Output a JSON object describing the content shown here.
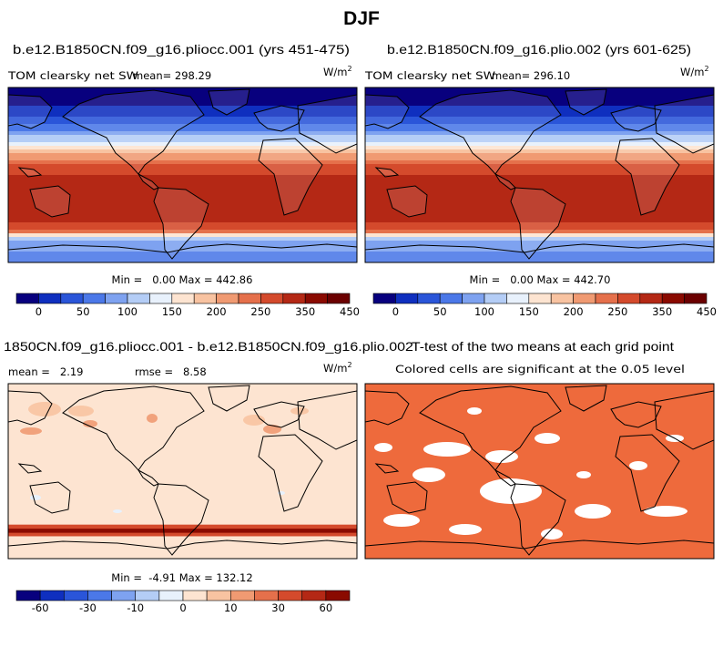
{
  "chart_data": {
    "type": "heatmap",
    "figure_title": "DJF",
    "panels": [
      {
        "id": "panel-1",
        "title": "b.e12.B1850CN.f09_g16.pliocc.001 (yrs 451-475)",
        "field_label": "TOM clearsky net SW",
        "mean_text": "mean= 298.29",
        "unit": "W/m",
        "unit_exp": "2",
        "stats_text": "Min =   0.00 Max = 442.86",
        "field": "absolute",
        "latitude_bands": [
          {
            "lat": 80,
            "value": 10
          },
          {
            "lat": 60,
            "value": 60
          },
          {
            "lat": 45,
            "value": 130
          },
          {
            "lat": 35,
            "value": 190
          },
          {
            "lat": 25,
            "value": 250
          },
          {
            "lat": 15,
            "value": 330
          },
          {
            "lat": 0,
            "value": 380
          },
          {
            "lat": -20,
            "value": 400
          },
          {
            "lat": -45,
            "value": 410
          },
          {
            "lat": -58,
            "value": 340
          },
          {
            "lat": -66,
            "value": 160
          },
          {
            "lat": -80,
            "value": 120
          }
        ]
      },
      {
        "id": "panel-2",
        "title": "b.e12.B1850CN.f09_g16.plio.002 (yrs 601-625)",
        "field_label": "TOM clearsky net SW",
        "mean_text": "mean= 296.10",
        "unit": "W/m",
        "unit_exp": "2",
        "stats_text": "Min =   0.00 Max = 442.70",
        "field": "absolute",
        "latitude_bands": [
          {
            "lat": 80,
            "value": 10
          },
          {
            "lat": 60,
            "value": 60
          },
          {
            "lat": 45,
            "value": 130
          },
          {
            "lat": 35,
            "value": 190
          },
          {
            "lat": 25,
            "value": 250
          },
          {
            "lat": 15,
            "value": 330
          },
          {
            "lat": 0,
            "value": 380
          },
          {
            "lat": -20,
            "value": 400
          },
          {
            "lat": -45,
            "value": 410
          },
          {
            "lat": -58,
            "value": 340
          },
          {
            "lat": -66,
            "value": 160
          },
          {
            "lat": -80,
            "value": 120
          }
        ]
      },
      {
        "id": "panel-3",
        "title": "1850CN.f09_g16.pliocc.001 - b.e12.B1850CN.f09_g16.plio.002",
        "mean_text": "mean =   2.19",
        "rmse_text": "rmse =   8.58",
        "unit": "W/m",
        "unit_exp": "2",
        "stats_text": "Min =  -4.91 Max = 132.12",
        "field": "difference",
        "dominant_value": 2,
        "strong_band": {
          "lat_from": -55,
          "lat_to": -67,
          "value": 40
        }
      },
      {
        "id": "panel-4",
        "title": "T-test of the two means at each grid point",
        "subtitle": "Colored cells are significant at the 0.05 level",
        "field": "significance",
        "significant_color": "#ee6a3c",
        "not_significant_color": "#ffffff"
      }
    ],
    "colorbars": [
      {
        "id": "colorbar-absolute",
        "colors": [
          "#08007e",
          "#0f2fbf",
          "#2a55d9",
          "#4b78e8",
          "#7ea2f0",
          "#b4cdf6",
          "#e8f1fc",
          "#fde4d1",
          "#f8c3a1",
          "#f09a72",
          "#e5704b",
          "#d44a2c",
          "#b42815",
          "#8a0a00",
          "#6b0000"
        ],
        "tick_labels": [
          "0",
          "50",
          "100",
          "150",
          "200",
          "250",
          "350",
          "450"
        ],
        "vmin": 0,
        "vmax": 475
      },
      {
        "id": "colorbar-difference",
        "colors": [
          "#08007e",
          "#0f2fbf",
          "#2a55d9",
          "#4b78e8",
          "#7ea2f0",
          "#b4cdf6",
          "#e8f1fc",
          "#fde4d1",
          "#f8c3a1",
          "#f09a72",
          "#e5704b",
          "#d44a2c",
          "#b42815",
          "#8a0a00"
        ],
        "tick_labels": [
          "-60",
          "-30",
          "-10",
          "0",
          "10",
          "30",
          "60"
        ],
        "levels": [
          -80,
          -60,
          -45,
          -30,
          -20,
          -10,
          -5,
          0,
          5,
          10,
          20,
          30,
          45,
          60,
          80
        ]
      }
    ]
  }
}
